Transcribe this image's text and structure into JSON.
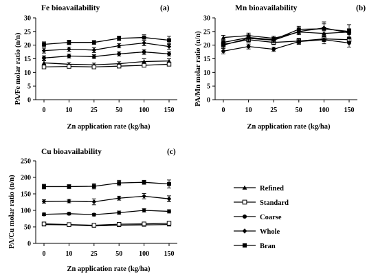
{
  "chart_data": [
    {
      "type": "line",
      "title": "Fe bioavailability",
      "panel_label": "(a)",
      "xlabel": "Zn application rate (kg/ha)",
      "ylabel": "PA/Fe molar ratio (n/n)",
      "categories": [
        "0",
        "10",
        "25",
        "50",
        "100",
        "150"
      ],
      "ylim": [
        0,
        30
      ],
      "yticks": [
        0,
        5,
        10,
        15,
        20,
        25,
        30
      ],
      "grid": false,
      "series": [
        {
          "name": "Refined",
          "values": [
            13.5,
            13.0,
            12.8,
            13.2,
            14.0,
            14.2
          ],
          "errors": [
            0.8,
            0.6,
            0.6,
            0.7,
            1.0,
            0.8
          ]
        },
        {
          "name": "Standard",
          "values": [
            12.0,
            12.2,
            12.0,
            12.3,
            12.6,
            13.0
          ],
          "errors": [
            0.6,
            0.5,
            0.5,
            0.5,
            0.6,
            0.6
          ]
        },
        {
          "name": "Coarse",
          "values": [
            15.3,
            16.0,
            15.8,
            16.8,
            17.5,
            16.8
          ],
          "errors": [
            0.8,
            0.7,
            0.7,
            0.8,
            0.9,
            0.8
          ]
        },
        {
          "name": "Whole",
          "values": [
            18.0,
            18.5,
            18.2,
            19.8,
            20.8,
            19.5
          ],
          "errors": [
            0.9,
            0.8,
            0.9,
            0.8,
            1.0,
            1.1
          ]
        },
        {
          "name": "Bran",
          "values": [
            20.3,
            21.0,
            21.0,
            22.5,
            22.8,
            21.8
          ],
          "errors": [
            0.9,
            0.8,
            0.7,
            0.8,
            1.0,
            1.5
          ]
        }
      ]
    },
    {
      "type": "line",
      "title": "Mn bioavailability",
      "panel_label": "(b)",
      "xlabel": "Zn application rate (kg/ha)",
      "ylabel": "PA/Mn molar ratio (n/n)",
      "categories": [
        "0",
        "10",
        "25",
        "50",
        "100",
        "150"
      ],
      "ylim": [
        0,
        30
      ],
      "yticks": [
        0,
        5,
        10,
        15,
        20,
        25,
        30
      ],
      "grid": false,
      "series": [
        {
          "name": "Refined",
          "values": [
            22.8,
            23.5,
            22.5,
            24.8,
            24.3,
            24.8
          ],
          "errors": [
            0.8,
            0.9,
            0.8,
            1.0,
            1.2,
            1.0
          ]
        },
        {
          "name": "Standard",
          "values": [
            20.3,
            22.0,
            21.0,
            21.5,
            22.3,
            22.0
          ],
          "errors": [
            0.8,
            0.9,
            0.8,
            1.0,
            1.0,
            0.9
          ]
        },
        {
          "name": "Coarse",
          "values": [
            17.8,
            19.5,
            18.5,
            21.3,
            22.0,
            20.8
          ],
          "errors": [
            1.0,
            0.9,
            0.8,
            1.0,
            1.5,
            1.5
          ]
        },
        {
          "name": "Whole",
          "values": [
            20.0,
            22.5,
            21.8,
            25.0,
            26.3,
            24.5
          ],
          "errors": [
            1.0,
            1.2,
            1.0,
            1.2,
            1.5,
            1.5
          ]
        },
        {
          "name": "Bran",
          "values": [
            21.0,
            22.8,
            22.0,
            25.8,
            26.0,
            25.0
          ],
          "errors": [
            0.9,
            1.0,
            0.9,
            1.1,
            2.5,
            2.5
          ]
        }
      ]
    },
    {
      "type": "line",
      "title": "Cu bioavailability",
      "panel_label": "(c)",
      "xlabel": "Zn application rate (kg/ha)",
      "ylabel": "PA/Cu molar ratio (n/n)",
      "categories": [
        "0",
        "10",
        "25",
        "50",
        "100",
        "150"
      ],
      "ylim": [
        0,
        250
      ],
      "yticks": [
        0,
        50,
        100,
        150,
        200,
        250
      ],
      "grid": false,
      "series": [
        {
          "name": "Refined",
          "values": [
            57,
            56,
            53,
            55,
            56,
            57
          ],
          "errors": [
            4,
            3,
            3,
            3,
            3,
            3
          ]
        },
        {
          "name": "Standard",
          "values": [
            59,
            57,
            55,
            58,
            59,
            61
          ],
          "errors": [
            4,
            3,
            3,
            4,
            4,
            4
          ]
        },
        {
          "name": "Coarse",
          "values": [
            88,
            90,
            87,
            93,
            100,
            97
          ],
          "errors": [
            4,
            4,
            4,
            5,
            5,
            5
          ]
        },
        {
          "name": "Whole",
          "values": [
            127,
            128,
            126,
            137,
            143,
            135
          ],
          "errors": [
            5,
            5,
            9,
            6,
            8,
            9
          ]
        },
        {
          "name": "Bran",
          "values": [
            172,
            172,
            173,
            183,
            185,
            180
          ],
          "errors": [
            7,
            6,
            8,
            8,
            6,
            12
          ]
        }
      ]
    }
  ],
  "legend": [
    {
      "name": "Refined",
      "marker": "filled-triangle"
    },
    {
      "name": "Standard",
      "marker": "open-square"
    },
    {
      "name": "Coarse",
      "marker": "filled-circle"
    },
    {
      "name": "Whole",
      "marker": "filled-diamond"
    },
    {
      "name": "Bran",
      "marker": "filled-square"
    }
  ],
  "colors": {
    "ink": "#000000",
    "background": "#ffffff"
  }
}
